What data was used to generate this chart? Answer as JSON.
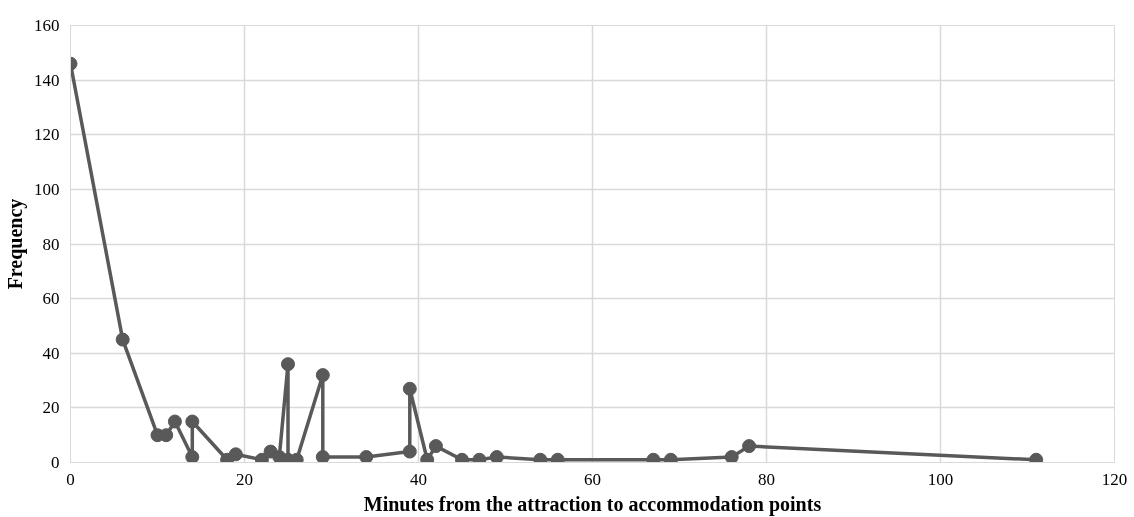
{
  "chart_data": {
    "type": "line",
    "xlabel": "Minutes from the attraction to accommodation points",
    "ylabel": "Frequency",
    "x": [
      0,
      6,
      10,
      11,
      12,
      14,
      14,
      18,
      19,
      22,
      23,
      24,
      25,
      25,
      26,
      29,
      29,
      34,
      39,
      39,
      41,
      42,
      45,
      47,
      49,
      54,
      56,
      67,
      69,
      76,
      78,
      111
    ],
    "series": [
      {
        "color": "#595959",
        "values": [
          146,
          45,
          10,
          10,
          15,
          2,
          15,
          1,
          3,
          1,
          4,
          2,
          36,
          1,
          1,
          32,
          2,
          2,
          4,
          27,
          1,
          6,
          1,
          1,
          2,
          1,
          1,
          1,
          1,
          2,
          6,
          1
        ]
      }
    ],
    "xlim": [
      0,
      120
    ],
    "xticks": [
      0,
      20,
      40,
      60,
      80,
      100,
      120
    ],
    "ylim": [
      0,
      160
    ],
    "yticks": [
      0,
      20,
      40,
      60,
      80,
      100,
      120,
      140,
      160
    ],
    "grid": true,
    "marker": "circle",
    "line_style": "solid"
  }
}
